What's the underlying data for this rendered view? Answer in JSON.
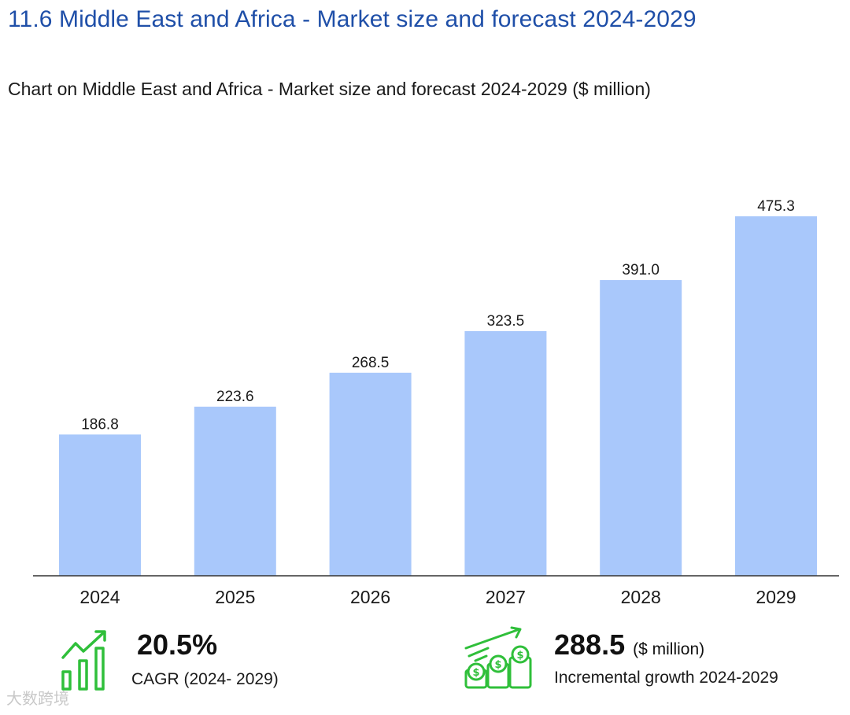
{
  "section_title": "11.6 Middle East and Africa - Market size and forecast 2024-2029",
  "chart_data": {
    "type": "bar",
    "title": "Chart on Middle East and Africa - Market size and forecast 2024-2029 ($ million)",
    "categories": [
      "2024",
      "2025",
      "2026",
      "2027",
      "2028",
      "2029"
    ],
    "values": [
      186.8,
      223.6,
      268.5,
      323.5,
      391.0,
      475.3
    ],
    "value_labels": [
      "186.8",
      "223.6",
      "268.5",
      "323.5",
      "391.0",
      "475.3"
    ],
    "ylim": [
      0,
      475.3
    ],
    "grid": false,
    "bar_color": "#a9c8fb"
  },
  "kpis": {
    "cagr": {
      "value": "20.5%",
      "label": "CAGR (2024- 2029)",
      "icon": "growth-chart-icon"
    },
    "incremental": {
      "value": "288.5",
      "unit": "($ million)",
      "label": "Incremental growth 2024-2029",
      "icon": "money-coins-icon"
    }
  },
  "watermark": "大数跨境",
  "colors": {
    "title_blue": "#1f4fa8",
    "bar": "#a9c8fb",
    "icon_green": "#2fbf3a"
  }
}
